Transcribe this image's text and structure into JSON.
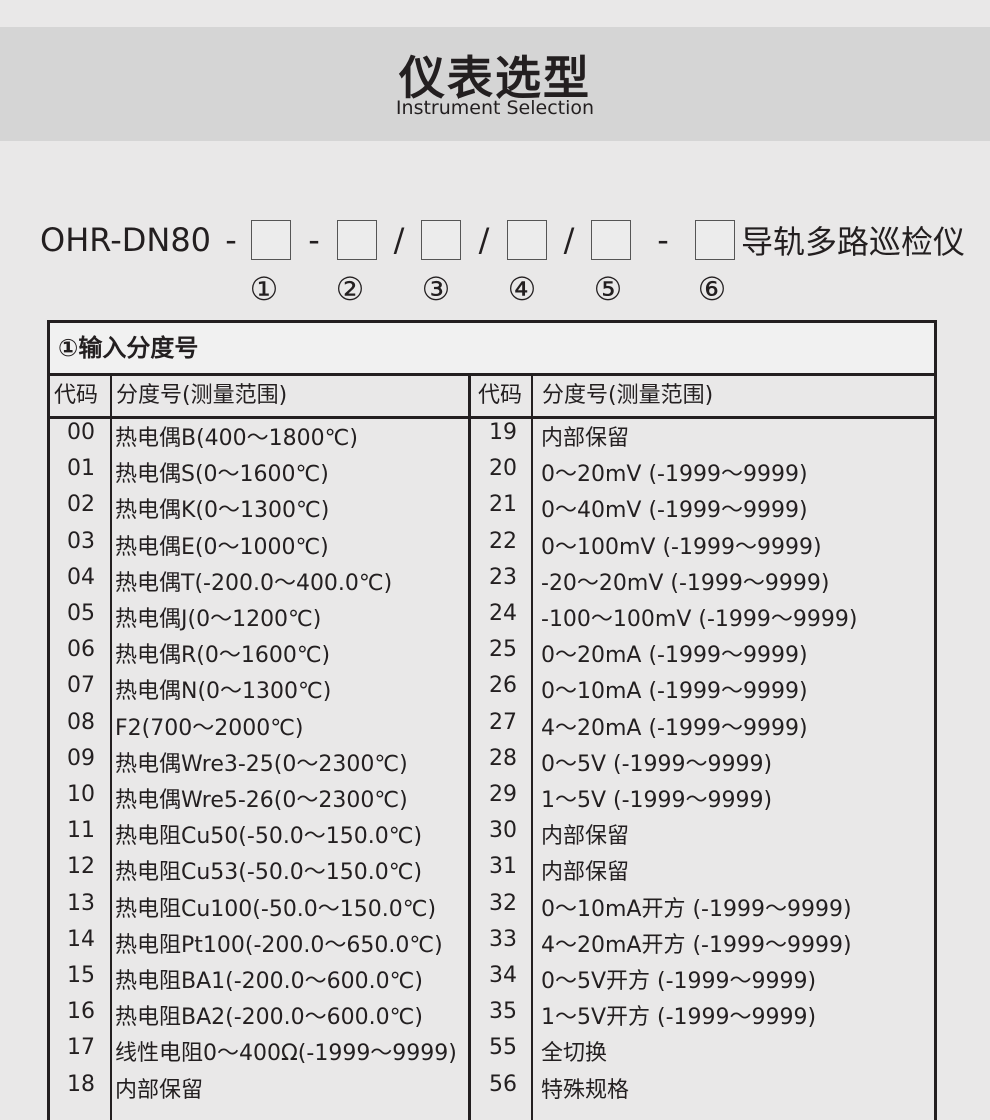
{
  "header": {
    "title": "仪表选型",
    "subtitle": "Instrument Selection"
  },
  "model": {
    "prefix": "OHR-DN80",
    "separators": [
      "-",
      "-",
      "/",
      "/",
      "/",
      "-"
    ],
    "suffix": "导轨多路巡检仪",
    "positions": [
      "①",
      "②",
      "③",
      "④",
      "⑤",
      "⑥"
    ]
  },
  "table": {
    "title": "①输入分度号",
    "headers": {
      "code": "代码",
      "range": "分度号(测量范围)"
    },
    "left": [
      {
        "code": "00",
        "desc": "热电偶B(400～1800℃)"
      },
      {
        "code": "01",
        "desc": "热电偶S(0～1600℃)"
      },
      {
        "code": "02",
        "desc": "热电偶K(0～1300℃)"
      },
      {
        "code": "03",
        "desc": "热电偶E(0～1000℃)"
      },
      {
        "code": "04",
        "desc": "热电偶T(-200.0～400.0℃)"
      },
      {
        "code": "05",
        "desc": "热电偶J(0～1200℃)"
      },
      {
        "code": "06",
        "desc": "热电偶R(0～1600℃)"
      },
      {
        "code": "07",
        "desc": "热电偶N(0～1300℃)"
      },
      {
        "code": "08",
        "desc": "F2(700～2000℃)"
      },
      {
        "code": "09",
        "desc": "热电偶Wre3-25(0～2300℃)"
      },
      {
        "code": "10",
        "desc": "热电偶Wre5-26(0～2300℃)"
      },
      {
        "code": "11",
        "desc": "热电阻Cu50(-50.0～150.0℃)"
      },
      {
        "code": "12",
        "desc": "热电阻Cu53(-50.0～150.0℃)"
      },
      {
        "code": "13",
        "desc": "热电阻Cu100(-50.0～150.0℃)"
      },
      {
        "code": "14",
        "desc": "热电阻Pt100(-200.0～650.0℃)"
      },
      {
        "code": "15",
        "desc": "热电阻BA1(-200.0～600.0℃)"
      },
      {
        "code": "16",
        "desc": "热电阻BA2(-200.0～600.0℃)"
      },
      {
        "code": "17",
        "desc": "线性电阻0～400Ω(-1999～9999)"
      },
      {
        "code": "18",
        "desc": "内部保留"
      }
    ],
    "right": [
      {
        "code": "19",
        "desc": "内部保留"
      },
      {
        "code": "20",
        "desc": "0～20mV (-1999～9999)"
      },
      {
        "code": "21",
        "desc": "0～40mV (-1999～9999)"
      },
      {
        "code": "22",
        "desc": "0～100mV (-1999～9999)"
      },
      {
        "code": "23",
        "desc": "-20～20mV (-1999～9999)"
      },
      {
        "code": "24",
        "desc": "-100～100mV (-1999～9999)"
      },
      {
        "code": "25",
        "desc": "0～20mA (-1999～9999)"
      },
      {
        "code": "26",
        "desc": "0～10mA (-1999～9999)"
      },
      {
        "code": "27",
        "desc": "4～20mA (-1999～9999)"
      },
      {
        "code": "28",
        "desc": "0～5V (-1999～9999)"
      },
      {
        "code": "29",
        "desc": "1～5V (-1999～9999)"
      },
      {
        "code": "30",
        "desc": "内部保留"
      },
      {
        "code": "31",
        "desc": "内部保留"
      },
      {
        "code": "32",
        "desc": "0～10mA开方 (-1999～9999)"
      },
      {
        "code": "33",
        "desc": "4～20mA开方 (-1999～9999)"
      },
      {
        "code": "34",
        "desc": "0～5V开方 (-1999～9999)"
      },
      {
        "code": "35",
        "desc": "1～5V开方 (-1999～9999)"
      },
      {
        "code": "55",
        "desc": "全切换"
      },
      {
        "code": "56",
        "desc": "特殊规格"
      }
    ]
  }
}
